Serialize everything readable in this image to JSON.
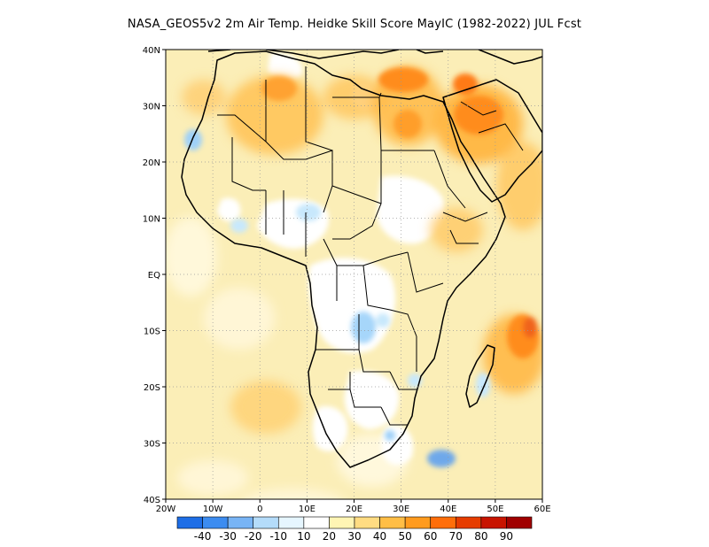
{
  "title": "NASA_GEOS5v2 2m Air Temp. Heidke Skill Score MayIC (1982-2022) JUL Fcst",
  "map": {
    "lon_labels": [
      "20W",
      "10W",
      "0",
      "10E",
      "20E",
      "30E",
      "40E",
      "50E",
      "60E"
    ],
    "lat_labels": [
      "40N",
      "30N",
      "20N",
      "10N",
      "EQ",
      "10S",
      "20S",
      "30S",
      "40S"
    ],
    "lon_range": [
      -20,
      60
    ],
    "lat_range": [
      -40,
      40
    ],
    "grid": "dotted",
    "background_color": "#fbeeb7"
  },
  "colorbar": {
    "labels": [
      "-40",
      "-30",
      "-20",
      "-10",
      "10",
      "20",
      "30",
      "40",
      "50",
      "60",
      "70",
      "80",
      "90"
    ],
    "colors": [
      "#1e6ee6",
      "#3c8cf0",
      "#78b4f5",
      "#b4dcfa",
      "#e6f6ff",
      "#ffffff",
      "#fff5b4",
      "#ffdc82",
      "#ffbe46",
      "#ff9b1e",
      "#ff6e0a",
      "#e63c00",
      "#c81400",
      "#a00000"
    ]
  }
}
